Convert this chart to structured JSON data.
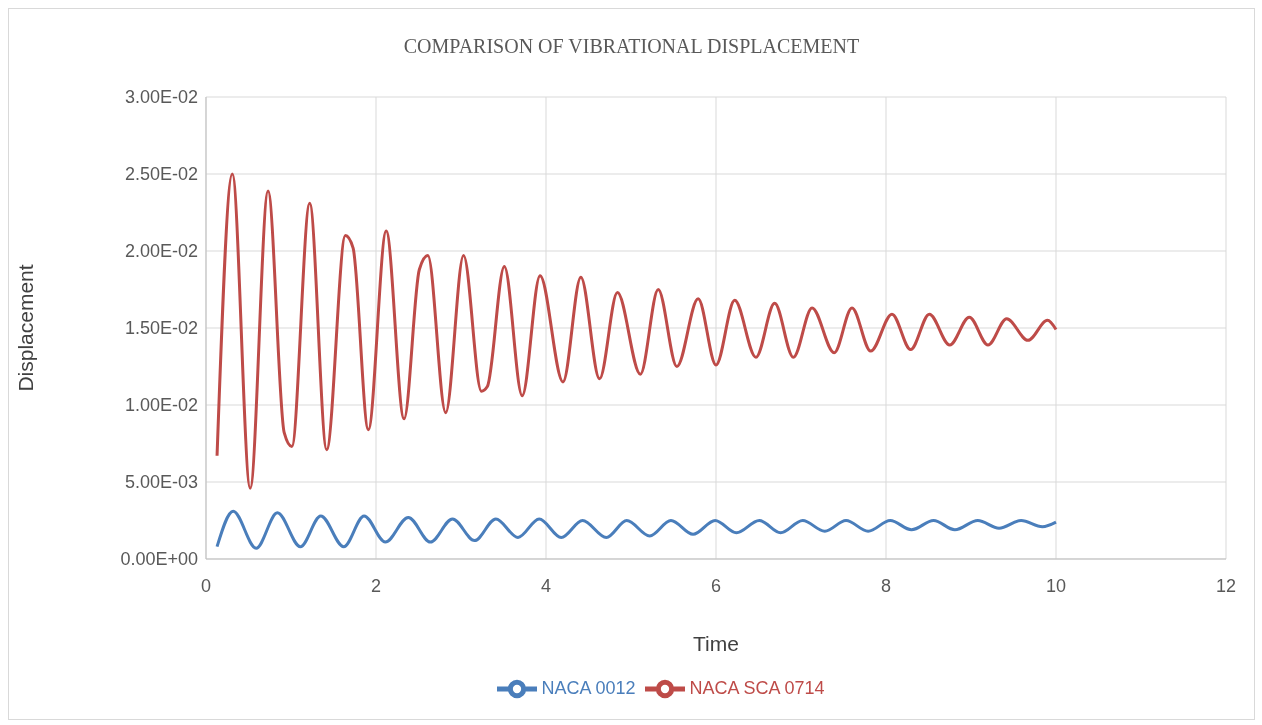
{
  "chart_data": {
    "type": "line",
    "title": "COMPARISON OF VIBRATIONAL DISPLACEMENT",
    "xlabel": "Time",
    "ylabel": "Displacement",
    "xlim": [
      0,
      12
    ],
    "xticks": [
      0,
      2,
      4,
      6,
      8,
      10,
      12
    ],
    "ylim": [
      0,
      0.03
    ],
    "yticks": [
      {
        "value": 0,
        "label": "0.00E+00"
      },
      {
        "value": 0.005,
        "label": "5.00E-03"
      },
      {
        "value": 0.01,
        "label": "1.00E-02"
      },
      {
        "value": 0.015,
        "label": "1.50E-02"
      },
      {
        "value": 0.02,
        "label": "2.00E-02"
      },
      {
        "value": 0.025,
        "label": "2.50E-02"
      },
      {
        "value": 0.03,
        "label": "3.00E-02"
      }
    ],
    "grid": true,
    "legend": "bottom",
    "marker": "none",
    "line_style": "solid",
    "series": [
      {
        "name": "NACA 0012",
        "color": "#4a7ebb",
        "x": [
          0.13,
          0.32,
          0.59,
          0.84,
          1.11,
          1.35,
          1.62,
          1.86,
          2.11,
          2.38,
          2.64,
          2.9,
          3.16,
          3.41,
          3.67,
          3.92,
          4.18,
          4.43,
          4.71,
          4.95,
          5.22,
          5.47,
          5.73,
          5.99,
          6.24,
          6.51,
          6.76,
          7.02,
          7.28,
          7.53,
          7.79,
          8.05,
          8.3,
          8.56,
          8.81,
          9.08,
          9.33,
          9.59,
          9.84,
          10.0
        ],
        "values": [
          0.0008,
          0.0031,
          0.0007,
          0.003,
          0.0008,
          0.0028,
          0.0008,
          0.0028,
          0.0011,
          0.0027,
          0.0011,
          0.0026,
          0.0012,
          0.0026,
          0.0014,
          0.0026,
          0.0014,
          0.0025,
          0.0014,
          0.0025,
          0.0015,
          0.0025,
          0.0016,
          0.0025,
          0.0017,
          0.0025,
          0.0017,
          0.0025,
          0.0018,
          0.0025,
          0.0018,
          0.0025,
          0.0019,
          0.0025,
          0.0019,
          0.0025,
          0.002,
          0.0025,
          0.0021,
          0.0024
        ]
      },
      {
        "name": "NACA SCA 0714",
        "color": "#be4b48",
        "x": [
          0.13,
          0.31,
          0.52,
          0.73,
          0.92,
          1.01,
          1.22,
          1.42,
          1.64,
          1.73,
          1.91,
          2.12,
          2.33,
          2.51,
          2.61,
          2.82,
          3.03,
          3.24,
          3.31,
          3.51,
          3.72,
          3.93,
          4.2,
          4.41,
          4.63,
          4.84,
          5.11,
          5.32,
          5.54,
          5.79,
          6.0,
          6.22,
          6.47,
          6.69,
          6.91,
          7.13,
          7.39,
          7.6,
          7.82,
          8.07,
          8.29,
          8.51,
          8.75,
          8.98,
          9.2,
          9.42,
          9.67,
          9.9,
          10.0
        ],
        "values": [
          0.0067,
          0.025,
          0.0046,
          0.0239,
          0.0082,
          0.0073,
          0.0231,
          0.0071,
          0.021,
          0.0202,
          0.0084,
          0.0213,
          0.0091,
          0.0188,
          0.0197,
          0.0095,
          0.0197,
          0.0109,
          0.0112,
          0.019,
          0.0106,
          0.0184,
          0.0115,
          0.0183,
          0.0117,
          0.0173,
          0.012,
          0.0175,
          0.0125,
          0.0169,
          0.0126,
          0.0168,
          0.0131,
          0.0166,
          0.0131,
          0.0163,
          0.0134,
          0.0163,
          0.0135,
          0.0159,
          0.0136,
          0.0159,
          0.0139,
          0.0157,
          0.0139,
          0.0156,
          0.0142,
          0.0155,
          0.0149
        ]
      }
    ]
  }
}
